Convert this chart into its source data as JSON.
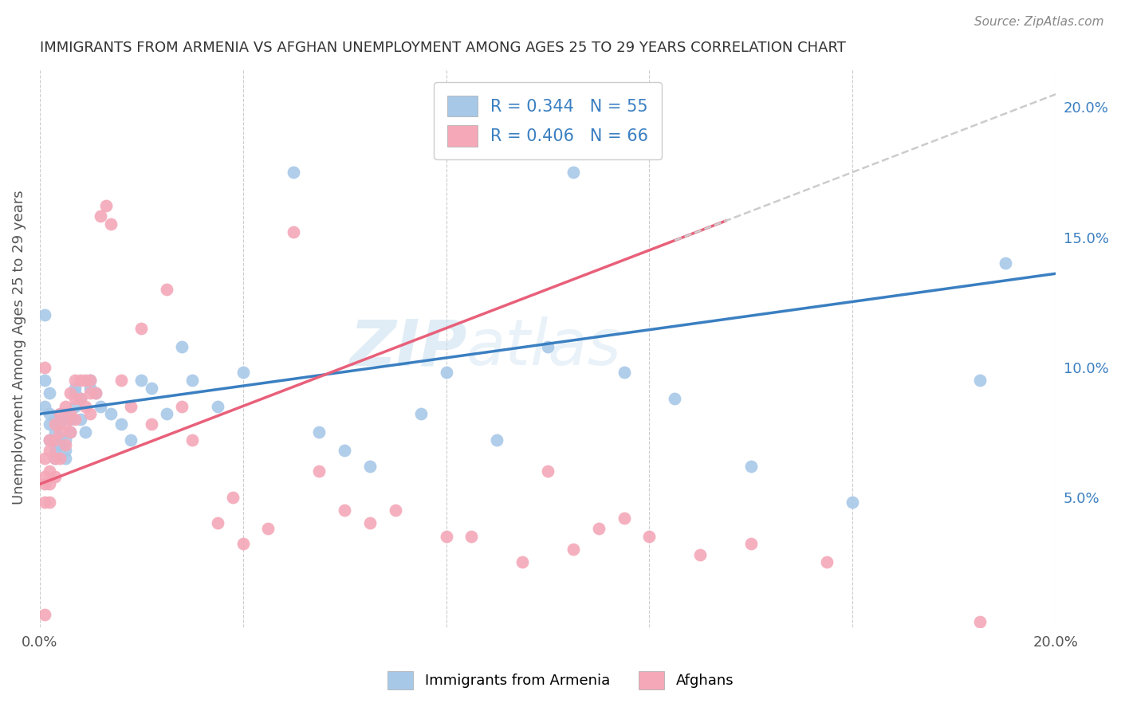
{
  "title": "IMMIGRANTS FROM ARMENIA VS AFGHAN UNEMPLOYMENT AMONG AGES 25 TO 29 YEARS CORRELATION CHART",
  "source": "Source: ZipAtlas.com",
  "ylabel": "Unemployment Among Ages 25 to 29 years",
  "xlim": [
    0.0,
    0.2
  ],
  "ylim": [
    0.0,
    0.215
  ],
  "x_ticks": [
    0.0,
    0.04,
    0.08,
    0.12,
    0.16,
    0.2
  ],
  "x_tick_labels": [
    "0.0%",
    "",
    "",
    "",
    "",
    "20.0%"
  ],
  "y_ticks_right": [
    0.05,
    0.1,
    0.15,
    0.2
  ],
  "y_tick_labels_right": [
    "5.0%",
    "10.0%",
    "15.0%",
    "20.0%"
  ],
  "legend_r1": "R = 0.344",
  "legend_n1": "N = 55",
  "legend_r2": "R = 0.406",
  "legend_n2": "N = 66",
  "legend_label1": "Immigrants from Armenia",
  "legend_label2": "Afghans",
  "watermark": "ZIPAtlas",
  "blue_color": "#a8c8e8",
  "pink_color": "#f4a8b8",
  "blue_line_color": "#3a7fc1",
  "pink_line_color": "#e8607a",
  "dash_color": "#cccccc",
  "value_color": "#3a7fc1",
  "blue_intercept": 0.082,
  "blue_slope": 0.27,
  "pink_intercept": 0.055,
  "pink_slope": 0.75,
  "blue_scatter_x": [
    0.001,
    0.001,
    0.001,
    0.002,
    0.002,
    0.002,
    0.002,
    0.003,
    0.003,
    0.003,
    0.003,
    0.004,
    0.004,
    0.004,
    0.005,
    0.005,
    0.005,
    0.005,
    0.006,
    0.006,
    0.007,
    0.007,
    0.007,
    0.008,
    0.008,
    0.009,
    0.01,
    0.01,
    0.011,
    0.012,
    0.014,
    0.016,
    0.018,
    0.02,
    0.022,
    0.025,
    0.028,
    0.03,
    0.035,
    0.04,
    0.05,
    0.055,
    0.06,
    0.065,
    0.075,
    0.08,
    0.09,
    0.1,
    0.105,
    0.115,
    0.125,
    0.14,
    0.16,
    0.185,
    0.19
  ],
  "blue_scatter_y": [
    0.12,
    0.085,
    0.095,
    0.09,
    0.082,
    0.078,
    0.072,
    0.068,
    0.075,
    0.08,
    0.065,
    0.07,
    0.073,
    0.078,
    0.068,
    0.072,
    0.082,
    0.065,
    0.075,
    0.08,
    0.09,
    0.085,
    0.092,
    0.088,
    0.08,
    0.075,
    0.095,
    0.092,
    0.09,
    0.085,
    0.082,
    0.078,
    0.072,
    0.095,
    0.092,
    0.082,
    0.108,
    0.095,
    0.085,
    0.098,
    0.175,
    0.075,
    0.068,
    0.062,
    0.082,
    0.098,
    0.072,
    0.108,
    0.175,
    0.098,
    0.088,
    0.062,
    0.048,
    0.095,
    0.14
  ],
  "pink_scatter_x": [
    0.001,
    0.001,
    0.001,
    0.001,
    0.001,
    0.002,
    0.002,
    0.002,
    0.002,
    0.002,
    0.003,
    0.003,
    0.003,
    0.003,
    0.004,
    0.004,
    0.004,
    0.005,
    0.005,
    0.005,
    0.006,
    0.006,
    0.006,
    0.007,
    0.007,
    0.007,
    0.008,
    0.008,
    0.009,
    0.009,
    0.01,
    0.01,
    0.01,
    0.011,
    0.012,
    0.013,
    0.014,
    0.016,
    0.018,
    0.02,
    0.022,
    0.025,
    0.028,
    0.03,
    0.035,
    0.038,
    0.04,
    0.045,
    0.05,
    0.055,
    0.06,
    0.065,
    0.07,
    0.08,
    0.085,
    0.095,
    0.1,
    0.105,
    0.11,
    0.115,
    0.12,
    0.13,
    0.14,
    0.155,
    0.185,
    0.001
  ],
  "pink_scatter_y": [
    0.065,
    0.058,
    0.055,
    0.048,
    0.005,
    0.072,
    0.068,
    0.06,
    0.055,
    0.048,
    0.078,
    0.072,
    0.065,
    0.058,
    0.082,
    0.075,
    0.065,
    0.085,
    0.078,
    0.07,
    0.09,
    0.082,
    0.075,
    0.095,
    0.088,
    0.08,
    0.095,
    0.088,
    0.095,
    0.085,
    0.095,
    0.09,
    0.082,
    0.09,
    0.158,
    0.162,
    0.155,
    0.095,
    0.085,
    0.115,
    0.078,
    0.13,
    0.085,
    0.072,
    0.04,
    0.05,
    0.032,
    0.038,
    0.152,
    0.06,
    0.045,
    0.04,
    0.045,
    0.035,
    0.035,
    0.025,
    0.06,
    0.03,
    0.038,
    0.042,
    0.035,
    0.028,
    0.032,
    0.025,
    0.002,
    0.1
  ]
}
